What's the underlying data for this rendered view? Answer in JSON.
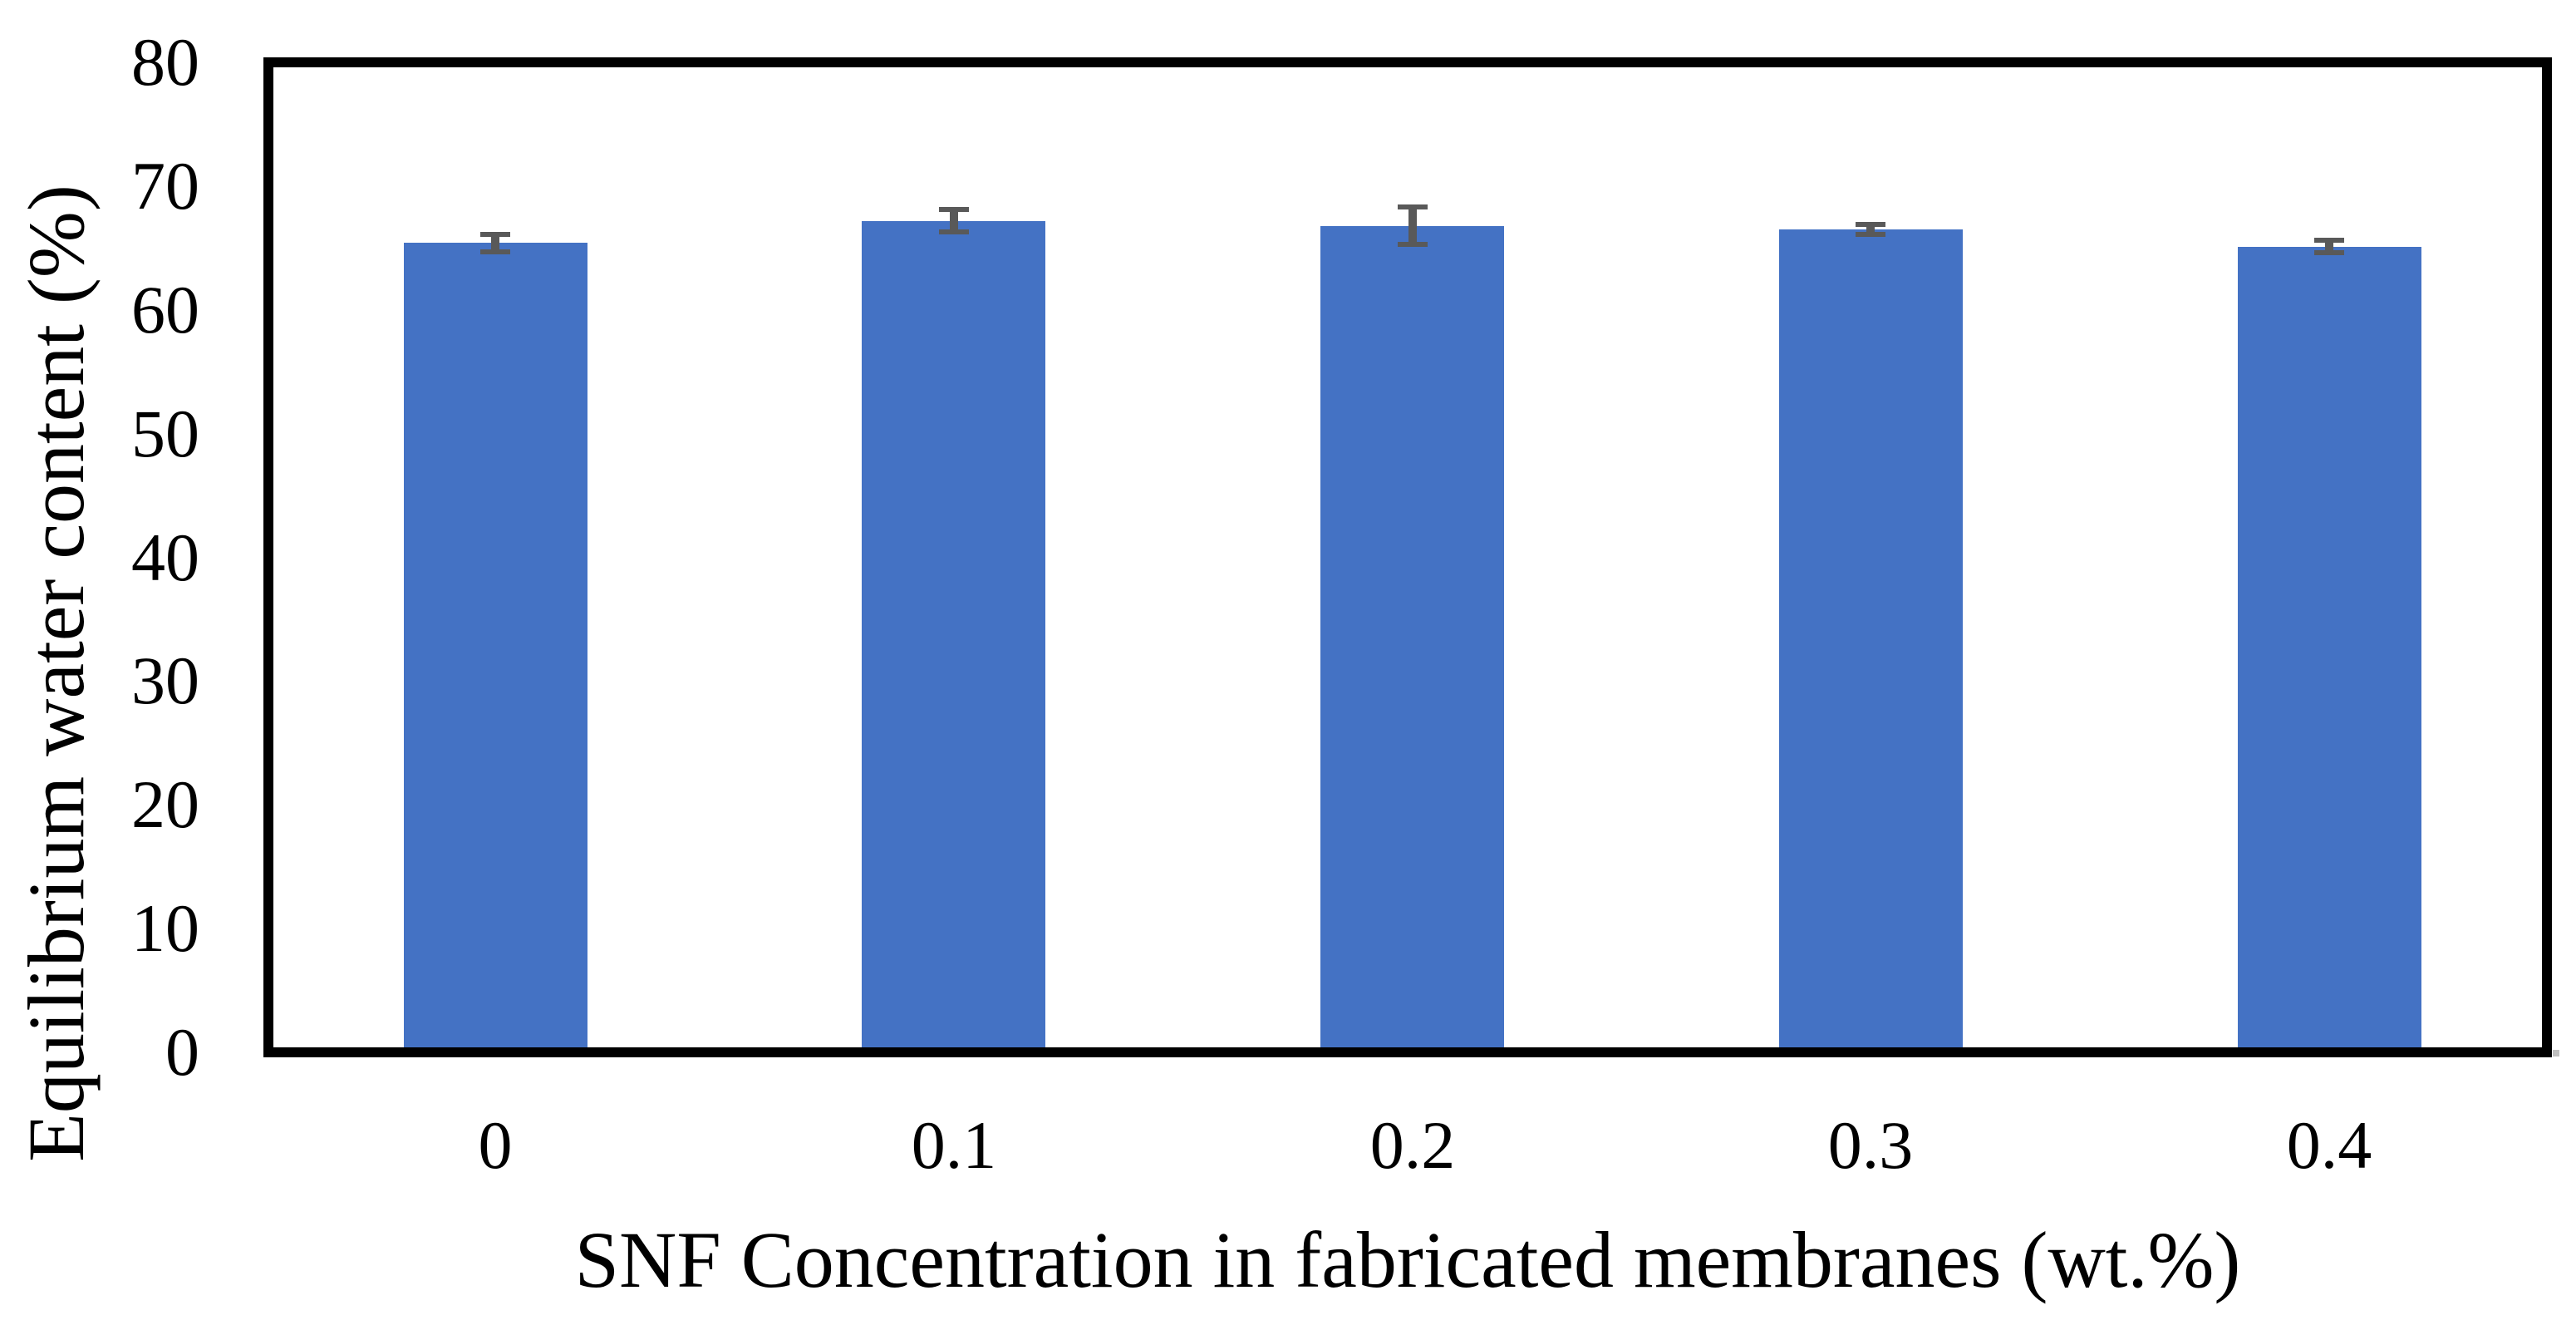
{
  "chart_data": {
    "type": "bar",
    "title": "",
    "xlabel": "SNF Concentration in fabricated membranes (wt.%)",
    "ylabel": "Equilibrium water content (%)",
    "categories": [
      "0",
      "0.1",
      "0.2",
      "0.3",
      "0.4"
    ],
    "values": [
      65.4,
      67.2,
      66.8,
      66.5,
      65.1
    ],
    "error_bars": [
      0.7,
      0.9,
      1.5,
      0.4,
      0.5
    ],
    "ylim": [
      0,
      80
    ],
    "yticks": [
      "0",
      "10",
      "20",
      "30",
      "40",
      "50",
      "60",
      "70",
      "80"
    ],
    "grid": false,
    "legend": "none",
    "colors": {
      "bar_fill": "#4472C4",
      "error_bar": "#595959",
      "axis_frame": "#000000",
      "background": "#FFFFFF",
      "corner_marker": "#BFBFBF"
    }
  }
}
